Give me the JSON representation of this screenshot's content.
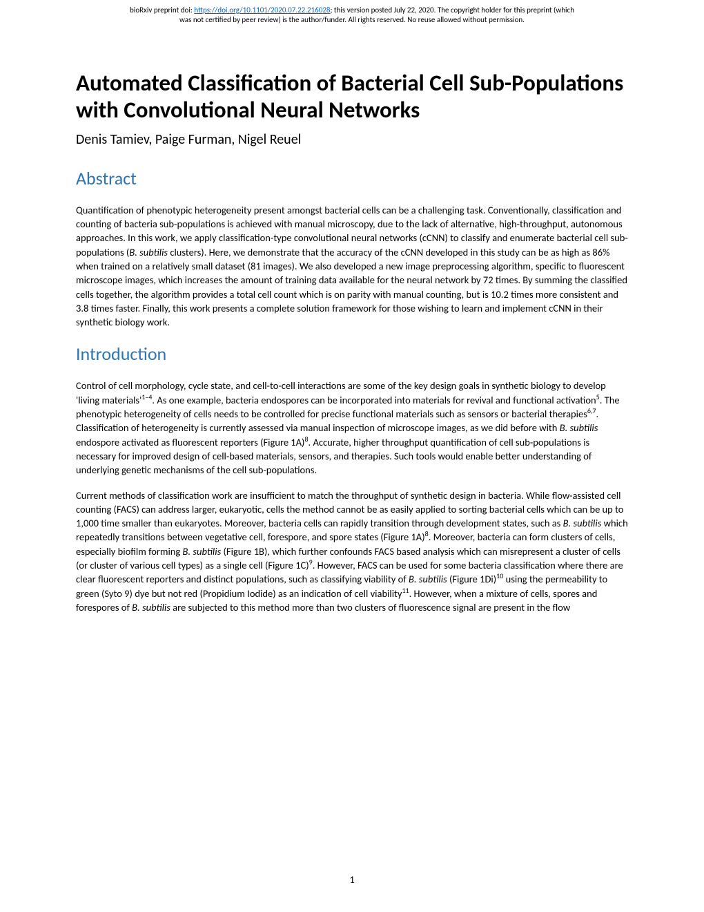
{
  "preprint": {
    "prefix": "bioRxiv preprint doi: ",
    "doi_url": "https://doi.org/10.1101/2020.07.22.216028",
    "suffix1": "; this version posted July 22, 2020. The copyright holder for this preprint (which",
    "line2": "was not certified by peer review) is the author/funder. All rights reserved. No reuse allowed without permission."
  },
  "title": "Automated Classification of Bacterial Cell Sub-Populations with Convolutional Neural Networks",
  "authors": "Denis Tamiev, Paige Furman, Nigel Reuel",
  "sections": {
    "abstract": {
      "heading": "Abstract",
      "p1": "Quantification of phenotypic heterogeneity present amongst bacterial cells can be a challenging task. Conventionally, classification and counting of bacteria sub-populations is achieved with manual microscopy, due to the lack of alternative, high-throughput, autonomous approaches. In this work, we apply classification-type convolutional neural networks (cCNN) to classify and enumerate bacterial cell sub-populations (B. subtilis clusters). Here, we demonstrate that the accuracy of the cCNN developed in this study can be as high as 86% when trained on a relatively small dataset (81 images). We also developed a new image preprocessing algorithm, specific to fluorescent microscope images, which increases the amount of training data available for the neural network by 72 times. By summing the classified cells together, the algorithm provides a total cell count which is on parity with manual counting, but is 10.2 times more consistent and 3.8 times faster.  Finally, this work presents a complete solution framework for those wishing to learn and implement cCNN in their synthetic biology work."
    },
    "introduction": {
      "heading": "Introduction",
      "p1_a": "Control of cell morphology, cycle state, and cell-to-cell interactions are some of the key design goals in synthetic biology to develop 'living materials'",
      "p1_sup1": "1–4",
      "p1_b": ". As one example, bacteria endospores can be incorporated into materials for revival and functional activation",
      "p1_sup2": "5",
      "p1_c": ". The phenotypic heterogeneity of cells needs to be controlled for precise functional materials such as sensors or bacterial therapies",
      "p1_sup3": "6,7",
      "p1_d": ". Classification of heterogeneity is currently assessed via manual inspection of microscope images, as we did before with ",
      "p1_ital1": "B. subtilis",
      "p1_e": " endospore activated as fluorescent reporters (Figure 1A)",
      "p1_sup4": "8",
      "p1_f": ". Accurate, higher throughput quantification of cell sub-populations is necessary for improved design of cell-based materials, sensors, and therapies. Such tools would enable better understanding of underlying genetic mechanisms of the cell sub-populations.",
      "p2_a": "Current methods of classification work are insufficient to match the throughput of synthetic design in bacteria. While flow-assisted cell counting (FACS) can address larger, eukaryotic, cells the method cannot be as easily applied to sorting bacterial cells which can be up to 1,000 time smaller than eukaryotes. Moreover, bacteria cells can rapidly transition through development states, such as ",
      "p2_ital1": "B. subtilis",
      "p2_b": " which repeatedly transitions between vegetative cell, forespore, and spore states (Figure 1A)",
      "p2_sup1": "8",
      "p2_c": ". Moreover, bacteria can form clusters of cells, especially biofilm forming ",
      "p2_ital2": "B. subtilis",
      "p2_d": " (Figure 1B), which further confounds FACS based analysis which can misrepresent a cluster of cells (or cluster of various cell types) as a single cell (Figure 1C)",
      "p2_sup2": "9",
      "p2_e": ". However, FACS can be used for some bacteria classification where there are clear fluorescent reporters and distinct populations, such as classifying viability of ",
      "p2_ital3": "B. subtilis",
      "p2_f": " (Figure 1Di)",
      "p2_sup3": "10",
      "p2_g": " using the permeability to green (Syto 9) dye but not red (Propidium Iodide) as an indication of cell viability",
      "p2_sup4": "11",
      "p2_h": ". However, when a mixture of cells, spores and forespores of ",
      "p2_ital4": "B. subtilis",
      "p2_i": " are subjected to this method more than two clusters of fluorescence signal are present in the flow"
    }
  },
  "page_number": "1",
  "colors": {
    "heading": "#2e74b5",
    "link": "#0563c1",
    "text": "#000000",
    "background": "#ffffff"
  },
  "typography": {
    "title_fontsize": 33,
    "authors_fontsize": 20,
    "heading_fontsize": 26,
    "body_fontsize": 14.5,
    "header_fontsize": 11
  }
}
